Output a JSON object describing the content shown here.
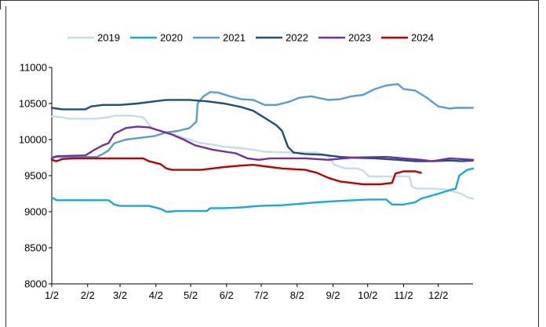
{
  "chart_data": {
    "type": "line",
    "title": "",
    "xlabel": "",
    "ylabel": "",
    "ylim": [
      8000,
      11000
    ],
    "y_ticks": [
      8000,
      8500,
      9000,
      9500,
      10000,
      10500,
      11000
    ],
    "x_tick_labels": [
      "1/2",
      "2/2",
      "3/2",
      "4/2",
      "5/2",
      "6/2",
      "7/2",
      "8/2",
      "9/2",
      "10/2",
      "11/2",
      "12/2"
    ],
    "x_tick_days": [
      1,
      32,
      60,
      91,
      121,
      152,
      182,
      213,
      244,
      274,
      305,
      335
    ],
    "x_range_days": [
      1,
      365
    ],
    "grid": false,
    "legend_position": "top",
    "series": [
      {
        "name": "2019",
        "color": "#c5dbee",
        "points": [
          [
            1,
            10320
          ],
          [
            10,
            10310
          ],
          [
            15,
            10290
          ],
          [
            40,
            10290
          ],
          [
            50,
            10310
          ],
          [
            55,
            10330
          ],
          [
            70,
            10330
          ],
          [
            80,
            10310
          ],
          [
            88,
            10150
          ],
          [
            100,
            10100
          ],
          [
            110,
            10050
          ],
          [
            120,
            10000
          ],
          [
            130,
            9950
          ],
          [
            140,
            9930
          ],
          [
            150,
            9900
          ],
          [
            165,
            9880
          ],
          [
            175,
            9860
          ],
          [
            185,
            9830
          ],
          [
            210,
            9820
          ],
          [
            230,
            9820
          ],
          [
            240,
            9770
          ],
          [
            245,
            9650
          ],
          [
            255,
            9600
          ],
          [
            265,
            9600
          ],
          [
            270,
            9570
          ],
          [
            275,
            9490
          ],
          [
            290,
            9490
          ],
          [
            310,
            9490
          ],
          [
            312,
            9350
          ],
          [
            316,
            9320
          ],
          [
            330,
            9320
          ],
          [
            340,
            9310
          ],
          [
            355,
            9250
          ],
          [
            360,
            9200
          ],
          [
            365,
            9180
          ]
        ]
      },
      {
        "name": "2020",
        "color": "#1aa7e0",
        "points": [
          [
            1,
            9200
          ],
          [
            5,
            9160
          ],
          [
            50,
            9160
          ],
          [
            55,
            9100
          ],
          [
            60,
            9080
          ],
          [
            85,
            9080
          ],
          [
            95,
            9040
          ],
          [
            100,
            9000
          ],
          [
            110,
            9010
          ],
          [
            120,
            9010
          ],
          [
            135,
            9010
          ],
          [
            138,
            9050
          ],
          [
            150,
            9050
          ],
          [
            165,
            9060
          ],
          [
            180,
            9080
          ],
          [
            200,
            9090
          ],
          [
            215,
            9110
          ],
          [
            230,
            9130
          ],
          [
            250,
            9150
          ],
          [
            275,
            9170
          ],
          [
            290,
            9170
          ],
          [
            295,
            9100
          ],
          [
            305,
            9100
          ],
          [
            315,
            9130
          ],
          [
            320,
            9180
          ],
          [
            335,
            9250
          ],
          [
            345,
            9300
          ],
          [
            350,
            9320
          ],
          [
            353,
            9500
          ],
          [
            360,
            9580
          ],
          [
            365,
            9600
          ]
        ]
      },
      {
        "name": "2021",
        "color": "#5b9bd5",
        "points": [
          [
            1,
            9760
          ],
          [
            40,
            9760
          ],
          [
            45,
            9800
          ],
          [
            50,
            9850
          ],
          [
            55,
            9950
          ],
          [
            65,
            10000
          ],
          [
            75,
            10020
          ],
          [
            90,
            10050
          ],
          [
            100,
            10100
          ],
          [
            110,
            10120
          ],
          [
            120,
            10160
          ],
          [
            126,
            10250
          ],
          [
            127,
            10500
          ],
          [
            132,
            10600
          ],
          [
            138,
            10660
          ],
          [
            145,
            10650
          ],
          [
            155,
            10600
          ],
          [
            165,
            10560
          ],
          [
            175,
            10550
          ],
          [
            185,
            10480
          ],
          [
            195,
            10480
          ],
          [
            205,
            10520
          ],
          [
            215,
            10580
          ],
          [
            225,
            10600
          ],
          [
            240,
            10550
          ],
          [
            250,
            10560
          ],
          [
            260,
            10600
          ],
          [
            270,
            10620
          ],
          [
            280,
            10700
          ],
          [
            290,
            10750
          ],
          [
            300,
            10770
          ],
          [
            305,
            10700
          ],
          [
            315,
            10680
          ],
          [
            325,
            10580
          ],
          [
            335,
            10460
          ],
          [
            345,
            10430
          ],
          [
            350,
            10440
          ],
          [
            365,
            10440
          ]
        ]
      },
      {
        "name": "2022",
        "color": "#1f4e79",
        "points": [
          [
            1,
            10440
          ],
          [
            10,
            10420
          ],
          [
            30,
            10420
          ],
          [
            35,
            10460
          ],
          [
            45,
            10480
          ],
          [
            60,
            10480
          ],
          [
            75,
            10500
          ],
          [
            90,
            10530
          ],
          [
            100,
            10550
          ],
          [
            120,
            10550
          ],
          [
            135,
            10530
          ],
          [
            150,
            10500
          ],
          [
            165,
            10450
          ],
          [
            175,
            10400
          ],
          [
            185,
            10300
          ],
          [
            195,
            10200
          ],
          [
            200,
            10120
          ],
          [
            205,
            9900
          ],
          [
            210,
            9820
          ],
          [
            220,
            9800
          ],
          [
            235,
            9790
          ],
          [
            250,
            9760
          ],
          [
            260,
            9750
          ],
          [
            280,
            9740
          ],
          [
            300,
            9720
          ],
          [
            315,
            9700
          ],
          [
            330,
            9700
          ],
          [
            345,
            9710
          ],
          [
            355,
            9700
          ],
          [
            365,
            9710
          ]
        ]
      },
      {
        "name": "2023",
        "color": "#7030a0",
        "points": [
          [
            1,
            9740
          ],
          [
            5,
            9770
          ],
          [
            30,
            9780
          ],
          [
            38,
            9860
          ],
          [
            45,
            9920
          ],
          [
            50,
            9950
          ],
          [
            55,
            10080
          ],
          [
            65,
            10160
          ],
          [
            75,
            10180
          ],
          [
            85,
            10170
          ],
          [
            95,
            10120
          ],
          [
            105,
            10070
          ],
          [
            115,
            10000
          ],
          [
            125,
            9920
          ],
          [
            140,
            9860
          ],
          [
            160,
            9810
          ],
          [
            170,
            9740
          ],
          [
            180,
            9720
          ],
          [
            190,
            9740
          ],
          [
            220,
            9740
          ],
          [
            240,
            9720
          ],
          [
            260,
            9750
          ],
          [
            290,
            9760
          ],
          [
            320,
            9720
          ],
          [
            330,
            9700
          ],
          [
            345,
            9740
          ],
          [
            365,
            9720
          ]
        ]
      },
      {
        "name": "2024",
        "color": "#c00000",
        "points": [
          [
            1,
            9720
          ],
          [
            5,
            9700
          ],
          [
            10,
            9730
          ],
          [
            20,
            9740
          ],
          [
            80,
            9740
          ],
          [
            85,
            9700
          ],
          [
            95,
            9660
          ],
          [
            100,
            9600
          ],
          [
            105,
            9580
          ],
          [
            130,
            9580
          ],
          [
            140,
            9600
          ],
          [
            150,
            9620
          ],
          [
            165,
            9640
          ],
          [
            175,
            9650
          ],
          [
            190,
            9620
          ],
          [
            200,
            9600
          ],
          [
            220,
            9580
          ],
          [
            230,
            9540
          ],
          [
            240,
            9470
          ],
          [
            250,
            9420
          ],
          [
            260,
            9400
          ],
          [
            270,
            9380
          ],
          [
            285,
            9380
          ],
          [
            295,
            9400
          ],
          [
            298,
            9530
          ],
          [
            305,
            9560
          ],
          [
            315,
            9560
          ],
          [
            320,
            9540
          ]
        ]
      }
    ]
  }
}
